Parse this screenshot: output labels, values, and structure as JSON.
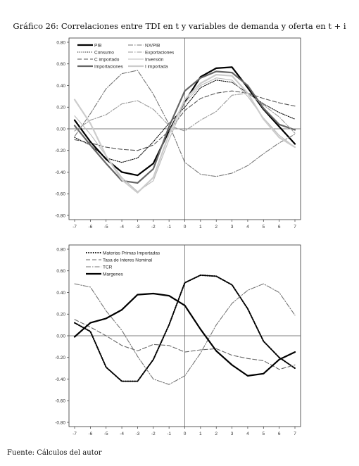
{
  "header": {
    "title": "Gráfico 26: Correlaciones entre TDI en t y variables de demanda y oferta en t + i"
  },
  "footer": {
    "source": "Fuente: Cálculos del autor"
  },
  "chart_data": [
    {
      "type": "line",
      "x": [
        -7,
        -6,
        -5,
        -4,
        -3,
        -2,
        -1,
        0,
        1,
        2,
        3,
        4,
        5,
        6,
        7
      ],
      "ylim": [
        -0.8,
        0.8
      ],
      "yticks": [
        "0.80",
        "0.60",
        "0.40",
        "0.20",
        "0.00",
        "-0.20",
        "-0.40",
        "-0.60",
        "-0.80"
      ],
      "xticks": [
        "-7",
        "-6",
        "-5",
        "-4",
        "-3",
        "-2",
        "-1",
        "0",
        "1",
        "2",
        "3",
        "4",
        "5",
        "6",
        "7"
      ],
      "legend_position": "top-left",
      "series": [
        {
          "name": "PIB",
          "color": "#000000",
          "style": "solid-thick",
          "values": [
            0.08,
            -0.12,
            -0.28,
            -0.4,
            -0.43,
            -0.32,
            -0.02,
            0.25,
            0.48,
            0.56,
            0.57,
            0.38,
            0.18,
            0.02,
            -0.14
          ]
        },
        {
          "name": "Consumo",
          "color": "#000000",
          "style": "dotted",
          "values": [
            -0.08,
            -0.15,
            -0.27,
            -0.31,
            -0.27,
            -0.12,
            0.05,
            0.2,
            0.38,
            0.45,
            0.43,
            0.33,
            0.23,
            0.15,
            0.09
          ]
        },
        {
          "name": "C importado",
          "color": "#555555",
          "style": "dashed",
          "values": [
            -0.1,
            -0.13,
            -0.17,
            -0.19,
            -0.2,
            -0.15,
            -0.02,
            0.17,
            0.28,
            0.33,
            0.35,
            0.33,
            0.28,
            0.24,
            0.21
          ]
        },
        {
          "name": "Importaciones",
          "color": "#666666",
          "style": "solid-thick",
          "values": [
            0.03,
            -0.15,
            -0.32,
            -0.48,
            -0.5,
            -0.37,
            0.02,
            0.35,
            0.47,
            0.53,
            0.52,
            0.4,
            0.19,
            0.04,
            -0.01
          ]
        },
        {
          "name": "NX/PIB",
          "color": "#777777",
          "style": "dash-dot",
          "values": [
            -0.07,
            0.14,
            0.37,
            0.51,
            0.54,
            0.32,
            0.04,
            -0.31,
            -0.42,
            -0.44,
            -0.41,
            -0.34,
            -0.23,
            -0.13,
            -0.05
          ]
        },
        {
          "name": "Exportaciones",
          "color": "#999999",
          "style": "dash-dot",
          "values": [
            -0.02,
            0.08,
            0.13,
            0.23,
            0.26,
            0.18,
            0.03,
            -0.02,
            0.08,
            0.16,
            0.31,
            0.33,
            0.22,
            0.11,
            -0.04
          ]
        },
        {
          "name": "Inversión",
          "color": "#bbbbbb",
          "style": "solid",
          "values": [
            0.12,
            -0.05,
            -0.25,
            -0.45,
            -0.58,
            -0.48,
            -0.1,
            0.24,
            0.4,
            0.47,
            0.45,
            0.3,
            0.1,
            -0.06,
            -0.17
          ]
        },
        {
          "name": "I importada",
          "color": "#cccccc",
          "style": "solid-thick",
          "values": [
            0.27,
            0.05,
            -0.25,
            -0.47,
            -0.59,
            -0.45,
            -0.05,
            0.27,
            0.42,
            0.5,
            0.49,
            0.33,
            0.09,
            -0.08,
            -0.17
          ]
        }
      ]
    },
    {
      "type": "line",
      "x": [
        -7,
        -6,
        -5,
        -4,
        -3,
        -2,
        -1,
        0,
        1,
        2,
        3,
        4,
        5,
        6,
        7
      ],
      "ylim": [
        -0.8,
        0.8
      ],
      "yticks": [
        "0.80",
        "0.60",
        "0.40",
        "0.20",
        "0.00",
        "-0.20",
        "-0.40",
        "-0.60",
        "-0.80"
      ],
      "xticks": [
        "-7",
        "-6",
        "-5",
        "-4",
        "-3",
        "-2",
        "-1",
        "0",
        "1",
        "2",
        "3",
        "4",
        "5",
        "6",
        "7"
      ],
      "legend_position": "top-left",
      "series": [
        {
          "name": "Materias Primas Importadas",
          "color": "#000000",
          "style": "dotted-thick",
          "values": [
            0.12,
            0.04,
            -0.29,
            -0.42,
            -0.42,
            -0.22,
            0.1,
            0.49,
            0.56,
            0.55,
            0.47,
            0.25,
            -0.05,
            -0.2,
            -0.3
          ]
        },
        {
          "name": "Tasa de Interes Nominal",
          "color": "#666666",
          "style": "dashed",
          "values": [
            0.15,
            0.08,
            0.0,
            -0.09,
            -0.14,
            -0.08,
            -0.09,
            -0.15,
            -0.13,
            -0.12,
            -0.18,
            -0.21,
            -0.23,
            -0.31,
            -0.27
          ]
        },
        {
          "name": "TCR",
          "color": "#777777",
          "style": "dash-dot",
          "values": [
            0.48,
            0.45,
            0.23,
            0.05,
            -0.19,
            -0.4,
            -0.45,
            -0.37,
            -0.16,
            0.1,
            0.3,
            0.42,
            0.48,
            0.4,
            0.19
          ]
        },
        {
          "name": "Margenes",
          "color": "#000000",
          "style": "solid-thick",
          "values": [
            -0.01,
            0.12,
            0.16,
            0.24,
            0.38,
            0.39,
            0.37,
            0.28,
            0.06,
            -0.14,
            -0.27,
            -0.37,
            -0.35,
            -0.22,
            -0.15
          ]
        }
      ]
    }
  ]
}
